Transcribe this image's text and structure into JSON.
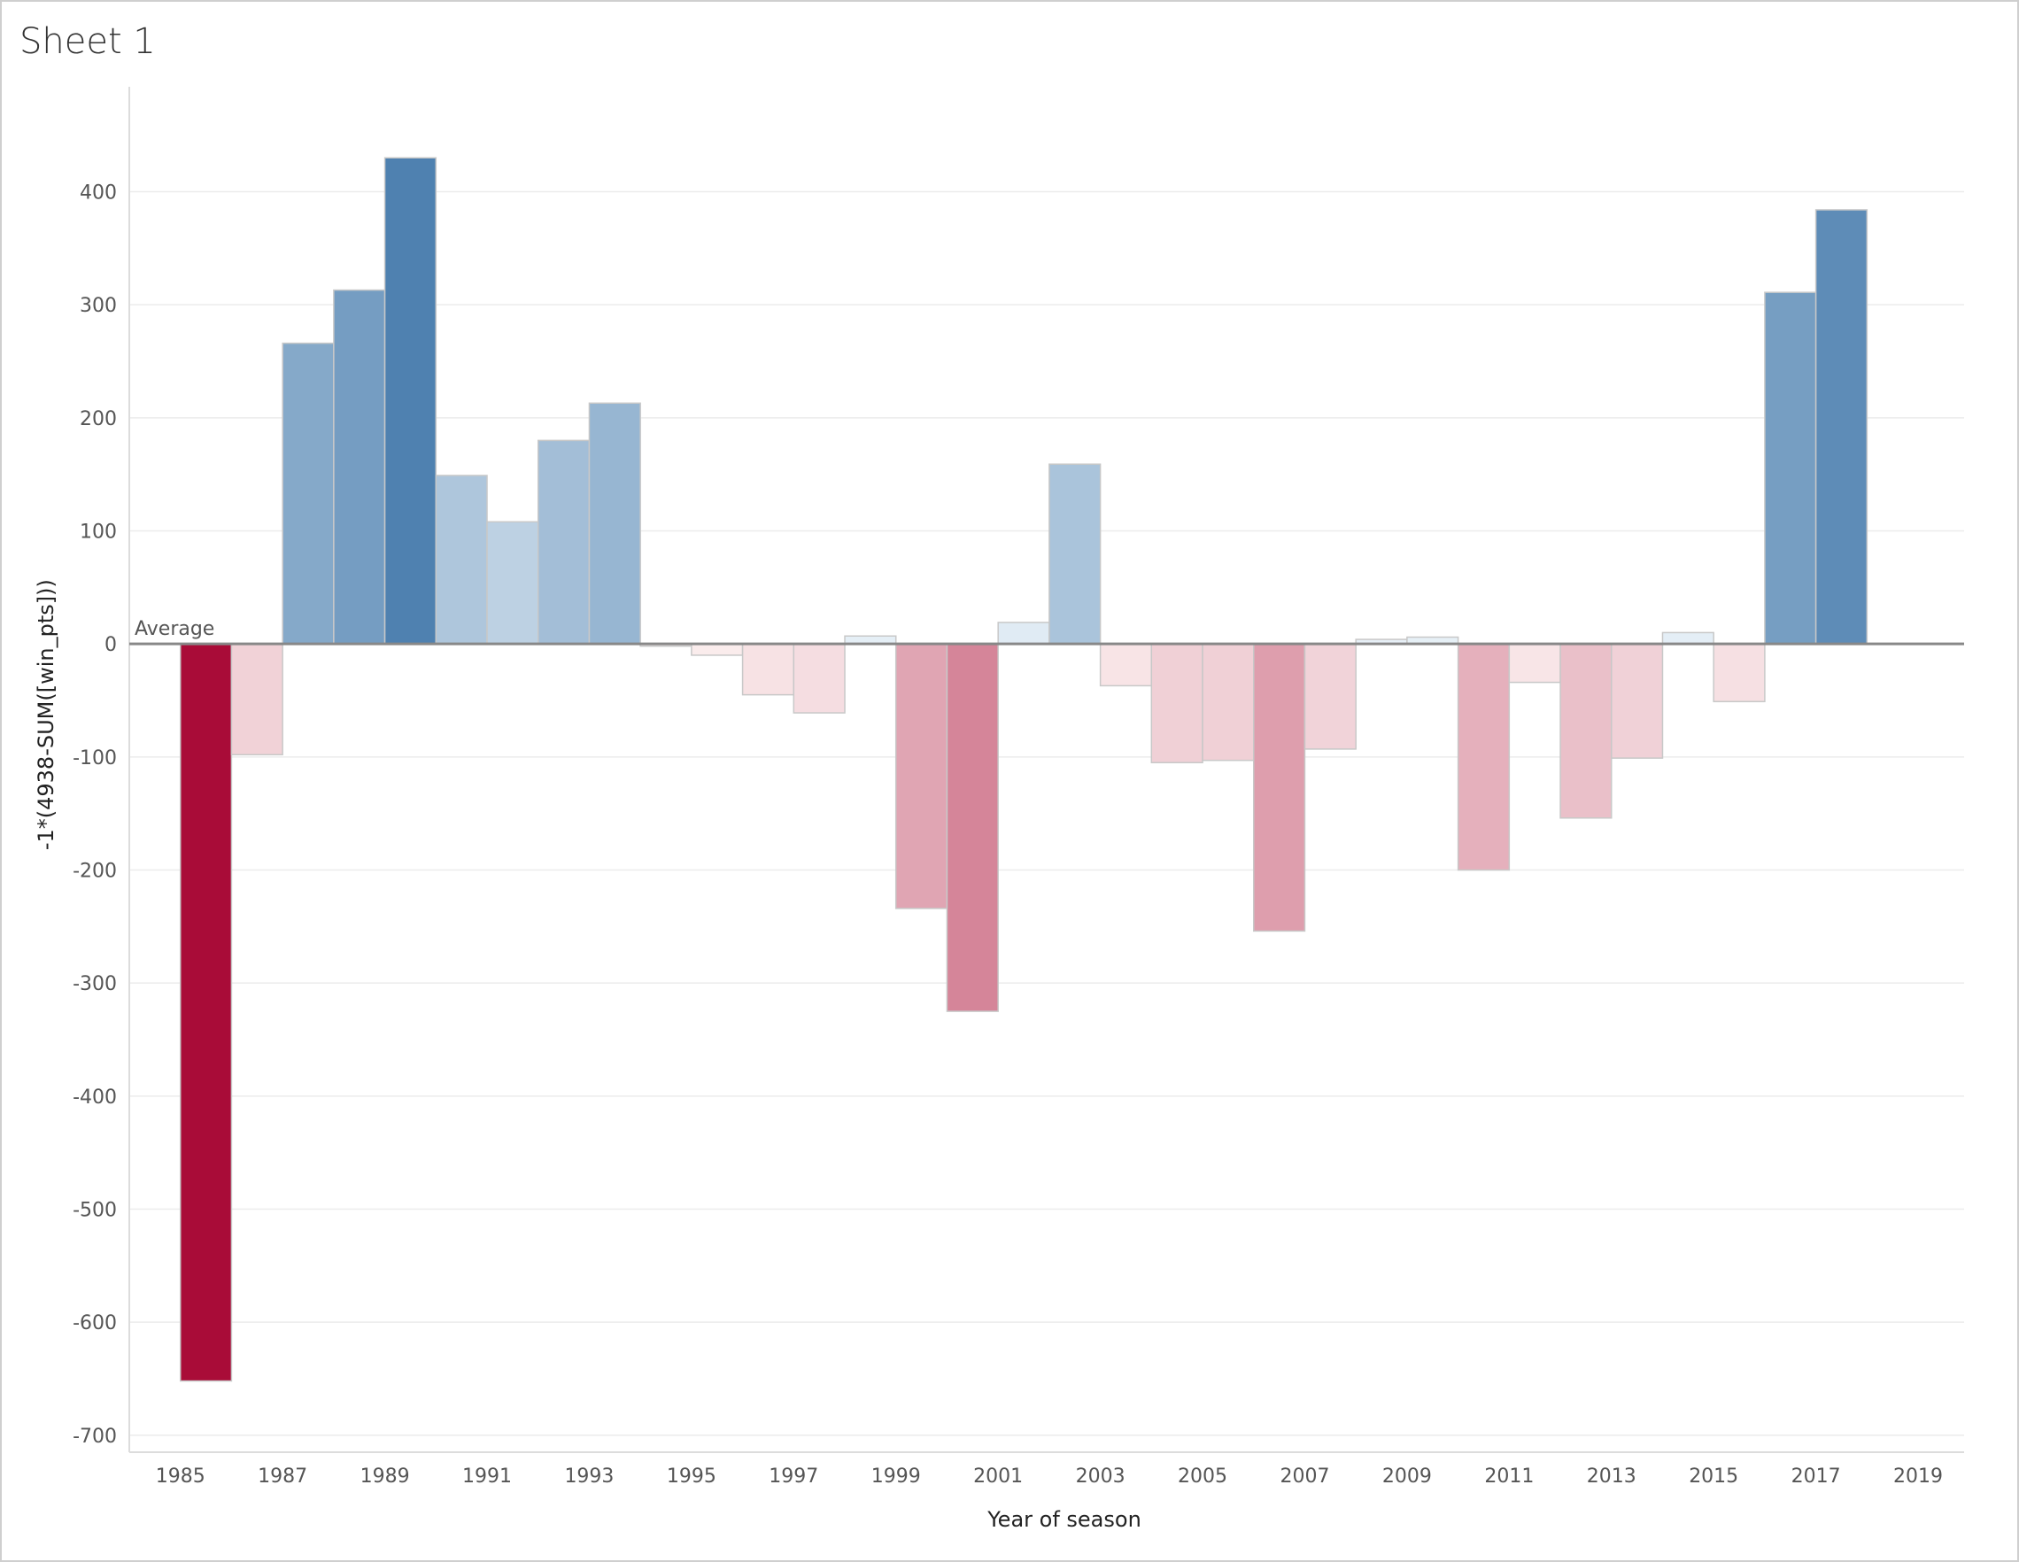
{
  "sheet": {
    "title": "Sheet 1"
  },
  "colors": {
    "positive_dark": "#4f81b0",
    "positive_light": "#e9f2f8",
    "negative_dark": "#a90c38",
    "negative_light": "#fbeeee",
    "bar_border": "#c8c8c8",
    "gridline": "#ececec",
    "zero_line": "#888888"
  },
  "chart_data": {
    "type": "bar",
    "title": "",
    "xlabel": "Year of season",
    "ylabel": "-1*(4938-SUM([win_pts]))",
    "xlim": [
      1984,
      2019.9
    ],
    "ylim": [
      -715,
      485
    ],
    "x_ticks": [
      "1985",
      "1987",
      "1989",
      "1991",
      "1993",
      "1995",
      "1997",
      "1999",
      "2001",
      "2003",
      "2005",
      "2007",
      "2009",
      "2011",
      "2013",
      "2015",
      "2017",
      "2019"
    ],
    "y_ticks": [
      400,
      300,
      200,
      100,
      0,
      -100,
      -200,
      -300,
      -400,
      -500,
      -600,
      -700
    ],
    "reference_line": {
      "label": "Average",
      "value": 0
    },
    "grid": true,
    "categories": [
      "1985",
      "1986",
      "1987",
      "1988",
      "1989",
      "1990",
      "1991",
      "1992",
      "1993",
      "1994",
      "1995",
      "1996",
      "1997",
      "1998",
      "1999",
      "2000",
      "2001",
      "2002",
      "2003",
      "2004",
      "2005",
      "2006",
      "2007",
      "2008",
      "2009",
      "2010",
      "2011",
      "2012",
      "2013",
      "2014",
      "2015",
      "2016",
      "2017"
    ],
    "values": [
      -652,
      -98,
      266,
      313,
      430,
      149,
      108,
      180,
      213,
      -2,
      -10,
      -45,
      -61,
      7,
      -234,
      -325,
      19,
      159,
      -37,
      -105,
      -103,
      -254,
      -93,
      4,
      6,
      -200,
      -34,
      -154,
      -101,
      10,
      -51,
      311,
      384
    ]
  }
}
